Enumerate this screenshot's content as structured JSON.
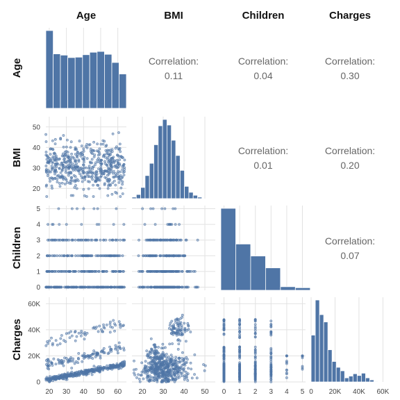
{
  "chart_data": {
    "type": "scatter-matrix",
    "variables": [
      "Age",
      "BMI",
      "Children",
      "Charges"
    ],
    "colors": {
      "marks": "#4f75a6",
      "bar_edge": "#ffffff",
      "grid": "#e2e2e2"
    },
    "correlation_label": "Correlation:",
    "correlations": [
      {
        "row": "Age",
        "col": "BMI",
        "value": "0.11"
      },
      {
        "row": "Age",
        "col": "Children",
        "value": "0.04"
      },
      {
        "row": "Age",
        "col": "Charges",
        "value": "0.30"
      },
      {
        "row": "BMI",
        "col": "Children",
        "value": "0.01"
      },
      {
        "row": "BMI",
        "col": "Charges",
        "value": "0.20"
      },
      {
        "row": "Children",
        "col": "Charges",
        "value": "0.07"
      }
    ],
    "axes": {
      "Age": {
        "range": [
          18,
          65
        ],
        "ticks": [
          20,
          30,
          40,
          50,
          60
        ],
        "tick_labels": [
          "20",
          "30",
          "40",
          "50",
          "60"
        ]
      },
      "BMI": {
        "range": [
          15,
          55
        ],
        "ticks": [
          20,
          30,
          40,
          50
        ],
        "tick_labels": [
          "20",
          "30",
          "40",
          "50"
        ]
      },
      "Children": {
        "range": [
          -0.2,
          5.2
        ],
        "ticks": [
          0,
          1,
          2,
          3,
          4,
          5
        ],
        "tick_labels": [
          "0",
          "1",
          "2",
          "3",
          "4",
          "5"
        ]
      },
      "Charges": {
        "range": [
          0,
          65000
        ],
        "ticks": [
          0,
          20000,
          40000,
          60000
        ],
        "tick_labels": [
          "0",
          "20K",
          "40K",
          "60K"
        ]
      }
    },
    "histograms": {
      "Age": {
        "bin_edges": [
          18,
          22.3,
          26.5,
          30.8,
          35.1,
          39.4,
          43.6,
          47.9,
          52.2,
          56.5,
          60.7,
          65
        ],
        "counts": [
          190,
          133,
          130,
          124,
          125,
          131,
          137,
          139,
          132,
          112,
          84
        ]
      },
      "BMI": {
        "bin_edges": [
          15,
          17.1,
          19.2,
          21.3,
          23.4,
          25.5,
          27.6,
          29.7,
          31.8,
          33.9,
          36,
          38.1,
          40.2,
          42.3,
          44.4,
          46.5,
          48.6
        ],
        "counts": [
          4,
          11,
          30,
          62,
          95,
          145,
          196,
          213,
          198,
          157,
          116,
          76,
          33,
          17,
          9,
          4
        ]
      },
      "Children": {
        "bin_edges": [
          -0.2,
          0.75,
          1.7,
          2.65,
          3.6,
          4.55,
          5.5
        ],
        "counts": [
          574,
          324,
          240,
          157,
          25,
          18
        ]
      },
      "Charges": {
        "bin_edges": [
          0,
          3500,
          7000,
          10500,
          14000,
          17500,
          21000,
          24500,
          28000,
          31500,
          35000,
          38500,
          42000,
          45500,
          49000,
          52500,
          56000
        ],
        "counts": [
          160,
          280,
          230,
          205,
          110,
          70,
          50,
          38,
          14,
          20,
          28,
          22,
          30,
          14,
          7,
          2
        ]
      }
    },
    "scatter": {
      "BMI_vs_Age": {
        "x_name": "Age",
        "y_name": "BMI",
        "description_range_x": [
          18,
          64
        ],
        "description_range_y": [
          16,
          53
        ]
      },
      "Children_vs_Age": {
        "x_name": "Age",
        "y_name": "Children",
        "levels": [
          0,
          1,
          2,
          3,
          4,
          5
        ]
      },
      "Children_vs_BMI": {
        "x_name": "BMI",
        "y_name": "Children",
        "levels": [
          0,
          1,
          2,
          3,
          4,
          5
        ]
      },
      "Charges_vs_Age": {
        "x_name": "Age",
        "y_name": "Charges",
        "bands": [
          {
            "intercept": 0,
            "slope": 265,
            "spread": 1500
          },
          {
            "intercept": 13000,
            "slope": 280,
            "spread": 3500
          },
          {
            "intercept": 30000,
            "slope": 330,
            "spread": 3500
          }
        ]
      },
      "Charges_vs_BMI": {
        "x_name": "BMI",
        "y_name": "Charges"
      },
      "Charges_vs_Children": {
        "x_name": "Children",
        "y_name": "Charges"
      }
    }
  }
}
